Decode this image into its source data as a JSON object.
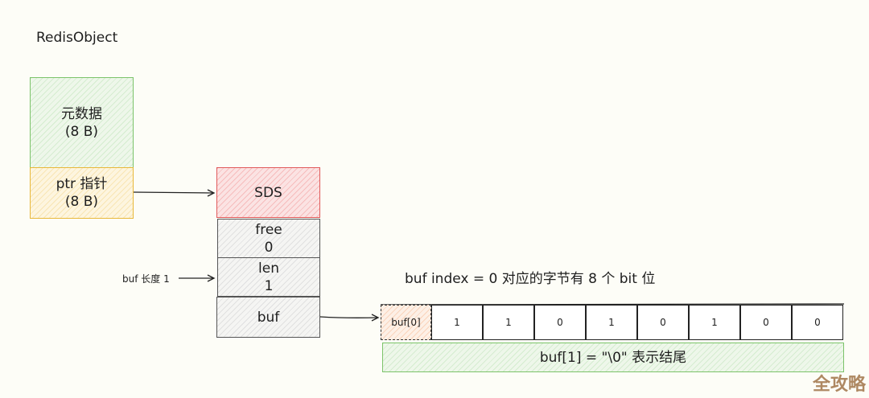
{
  "title": "RedisObject",
  "redis_object": {
    "metadata": {
      "line1": "元数据",
      "line2": "(8 B)"
    },
    "ptr": {
      "line1": "ptr 指针",
      "line2": "(8 B)"
    }
  },
  "sds": {
    "header": "SDS",
    "free": {
      "label": "free",
      "value": "0"
    },
    "len": {
      "label": "len",
      "value": "1"
    },
    "buf": "buf"
  },
  "len_annotation": "buf 长度 1",
  "bits_caption": "buf index =  0 对应的字节有 8 个 bit 位",
  "byte_cells": {
    "label": "buf[0]",
    "bits": [
      "1",
      "1",
      "0",
      "1",
      "0",
      "1",
      "0",
      "0"
    ]
  },
  "terminator": "buf[1]  = \"\\0\" 表示结尾",
  "watermark": "全攻略",
  "colors": {
    "green": "#7cc36a",
    "yellow": "#e8b83a",
    "red": "#e05a5a",
    "watermark": "#a67c52"
  }
}
